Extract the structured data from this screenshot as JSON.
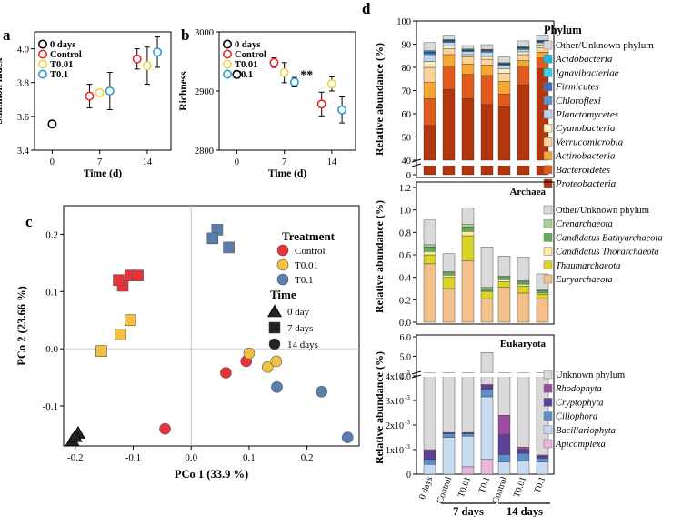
{
  "panel_labels": {
    "a": "a",
    "b": "b",
    "c": "c",
    "d": "d"
  },
  "chart_data": [
    {
      "id": "a",
      "type": "scatter",
      "xlabel": "Time (d)",
      "ylabel": "Shannon index",
      "ylim": [
        3.4,
        4.1
      ],
      "yticks": [
        "3.4",
        "3.6",
        "3.8",
        "4.0"
      ],
      "xticks": [
        "0",
        "7",
        "14"
      ],
      "legend": [
        "0 days",
        "Control",
        "T0.01",
        "T0.1"
      ],
      "series": [
        {
          "name": "0 days",
          "color": "#000000",
          "points": [
            {
              "x": 0,
              "y": 3.555,
              "err": 0.02
            }
          ]
        },
        {
          "name": "Control",
          "color": "#e8262b",
          "points": [
            {
              "x": 5.5,
              "y": 3.72,
              "err": 0.07
            },
            {
              "x": 12.5,
              "y": 3.94,
              "err": 0.06
            }
          ]
        },
        {
          "name": "T0.01",
          "color": "#f0d53a",
          "points": [
            {
              "x": 7,
              "y": 3.74,
              "err": 0.02
            },
            {
              "x": 14,
              "y": 3.9,
              "err": 0.11
            }
          ]
        },
        {
          "name": "T0.1",
          "color": "#2a9ad6",
          "points": [
            {
              "x": 8.5,
              "y": 3.75,
              "err": 0.11
            },
            {
              "x": 15.5,
              "y": 3.98,
              "err": 0.09
            }
          ]
        }
      ]
    },
    {
      "id": "b",
      "type": "scatter",
      "xlabel": "Time (d)",
      "ylabel": "Richness",
      "ylim": [
        2800,
        3000
      ],
      "yticks": [
        "2800",
        "2900",
        "3000"
      ],
      "xticks": [
        "0",
        "7",
        "14"
      ],
      "legend": [
        "0 days",
        "Control",
        "T0.01",
        "T0.1"
      ],
      "annotation": "**",
      "series": [
        {
          "name": "0 days",
          "color": "#000000",
          "points": [
            {
              "x": 0,
              "y": 2928,
              "err": 6
            }
          ]
        },
        {
          "name": "Control",
          "color": "#e8262b",
          "points": [
            {
              "x": 5.5,
              "y": 2948,
              "err": 8
            },
            {
              "x": 12.5,
              "y": 2878,
              "err": 20
            }
          ]
        },
        {
          "name": "T0.01",
          "color": "#f0d53a",
          "points": [
            {
              "x": 7,
              "y": 2931,
              "err": 17
            },
            {
              "x": 14,
              "y": 2912,
              "err": 12
            }
          ]
        },
        {
          "name": "T0.1",
          "color": "#2a9ad6",
          "points": [
            {
              "x": 8.5,
              "y": 2915,
              "err": 8
            },
            {
              "x": 15.5,
              "y": 2868,
              "err": 22
            }
          ]
        }
      ]
    },
    {
      "id": "c",
      "type": "scatter",
      "xlabel": "PCo 1 (33.9 %)",
      "ylabel": "PCo 2 (23.66 %)",
      "xlim": [
        -0.22,
        0.29
      ],
      "ylim": [
        -0.17,
        0.25
      ],
      "xticks": [
        "-0.2",
        "-0.1",
        "0.0",
        "0.1",
        "0.2"
      ],
      "yticks": [
        "-0.1",
        "0.0",
        "0.1",
        "0.2"
      ],
      "legend_treatment_title": "Treatment",
      "legend_treatment": [
        {
          "name": "Control",
          "color": "#e8333a"
        },
        {
          "name": "T0.01",
          "color": "#f2c043"
        },
        {
          "name": "T0.1",
          "color": "#5a7fae"
        }
      ],
      "legend_time_title": "Time",
      "legend_time": [
        {
          "name": "0 day",
          "shape": "triangle"
        },
        {
          "name": "7 days",
          "shape": "square"
        },
        {
          "name": "14 days",
          "shape": "circle"
        }
      ],
      "points": [
        {
          "x": -0.205,
          "y": -0.16,
          "shape": "triangle",
          "color": "#222222"
        },
        {
          "x": -0.195,
          "y": -0.147,
          "shape": "triangle",
          "color": "#222222"
        },
        {
          "x": -0.2,
          "y": -0.153,
          "shape": "triangle",
          "color": "#222222"
        },
        {
          "x": -0.118,
          "y": 0.11,
          "shape": "square",
          "color": "#e8333a"
        },
        {
          "x": -0.105,
          "y": 0.128,
          "shape": "square",
          "color": "#e8333a"
        },
        {
          "x": -0.092,
          "y": 0.128,
          "shape": "square",
          "color": "#e8333a"
        },
        {
          "x": -0.125,
          "y": 0.12,
          "shape": "square",
          "color": "#e8333a"
        },
        {
          "x": -0.155,
          "y": -0.004,
          "shape": "square",
          "color": "#f2c043"
        },
        {
          "x": -0.122,
          "y": 0.025,
          "shape": "square",
          "color": "#f2c043"
        },
        {
          "x": -0.105,
          "y": 0.05,
          "shape": "square",
          "color": "#f2c043"
        },
        {
          "x": 0.045,
          "y": 0.208,
          "shape": "square",
          "color": "#5a7fae"
        },
        {
          "x": 0.037,
          "y": 0.193,
          "shape": "square",
          "color": "#5a7fae"
        },
        {
          "x": 0.065,
          "y": 0.177,
          "shape": "square",
          "color": "#5a7fae"
        },
        {
          "x": -0.045,
          "y": -0.14,
          "shape": "circle",
          "color": "#e8333a"
        },
        {
          "x": 0.06,
          "y": -0.042,
          "shape": "circle",
          "color": "#e8333a"
        },
        {
          "x": 0.095,
          "y": -0.022,
          "shape": "circle",
          "color": "#e8333a"
        },
        {
          "x": 0.1,
          "y": -0.008,
          "shape": "circle",
          "color": "#f2c043"
        },
        {
          "x": 0.132,
          "y": -0.032,
          "shape": "circle",
          "color": "#f2c043"
        },
        {
          "x": 0.147,
          "y": -0.022,
          "shape": "circle",
          "color": "#f2c043"
        },
        {
          "x": 0.148,
          "y": -0.067,
          "shape": "circle",
          "color": "#5a7fae"
        },
        {
          "x": 0.225,
          "y": -0.075,
          "shape": "circle",
          "color": "#5a7fae"
        },
        {
          "x": 0.27,
          "y": -0.155,
          "shape": "circle",
          "color": "#5a7fae"
        }
      ]
    },
    {
      "id": "d1",
      "type": "bar",
      "stacked": true,
      "ylabel": "Relative abundance (%)",
      "ylim": [
        0,
        100
      ],
      "yticks": [
        "100",
        "90",
        "80",
        "70",
        "60",
        "50",
        "40",
        "0"
      ],
      "legend_title": "Phylum",
      "legend": [
        {
          "name": "Other/Unknown phylum",
          "color": "#d9d9d9",
          "italic": false
        },
        {
          "name": "Acidobacteria",
          "color": "#1fb4e6",
          "italic": true
        },
        {
          "name": "Ignavibacteriae",
          "color": "#2fd3ee",
          "italic": true
        },
        {
          "name": "Firmicutes",
          "color": "#3a6fc0",
          "italic": true
        },
        {
          "name": "Chloroflexi",
          "color": "#5d94d4",
          "italic": true
        },
        {
          "name": "Planctomycetes",
          "color": "#bcd6f0",
          "italic": true
        },
        {
          "name": "Cyanobacteria",
          "color": "#fbeec0",
          "italic": true
        },
        {
          "name": "Verrucomicrobia",
          "color": "#fbd29a",
          "italic": true
        },
        {
          "name": "Actinobacteria",
          "color": "#f6a733",
          "italic": true
        },
        {
          "name": "Bacteroidetes",
          "color": "#e25a1c",
          "italic": true
        },
        {
          "name": "Proteobacteria",
          "color": "#b3360c",
          "italic": true
        }
      ],
      "categories": [
        "0 days",
        "Control 7d",
        "T0.01 7d",
        "T0.1 7d",
        "Control 14d",
        "T0.01 14d",
        "T0.1 14d"
      ],
      "series": [
        {
          "name": "Proteobacteria",
          "values": [
            55,
            70.5,
            66.5,
            64,
            63,
            72.5,
            79.5
          ]
        },
        {
          "name": "Bacteroidetes",
          "values": [
            11.5,
            10,
            10.5,
            12.5,
            5.5,
            8,
            4.5
          ]
        },
        {
          "name": "Actinobacteria",
          "values": [
            7,
            5,
            4.5,
            4.5,
            5.5,
            2.5,
            2.5
          ]
        },
        {
          "name": "Verrucomicrobia",
          "values": [
            6.5,
            2.5,
            3,
            2.5,
            3.5,
            2.5,
            2
          ]
        },
        {
          "name": "Cyanobacteria",
          "values": [
            2.5,
            1.2,
            1,
            1.2,
            1.8,
            1.2,
            1.2
          ]
        },
        {
          "name": "Planctomycetes",
          "values": [
            3,
            1.5,
            1.3,
            1.8,
            1.6,
            1,
            0.9
          ]
        },
        {
          "name": "Chloroflexi",
          "values": [
            0.5,
            0.5,
            0.4,
            0.5,
            0.4,
            0.4,
            0.4
          ]
        },
        {
          "name": "Firmicutes",
          "values": [
            0.5,
            0.3,
            0.2,
            0.3,
            0.2,
            0.3,
            0.2
          ]
        },
        {
          "name": "Ignavibacteriae",
          "values": [
            0.2,
            0.2,
            0.2,
            0.2,
            0.2,
            0.2,
            0.2
          ]
        },
        {
          "name": "Acidobacteria",
          "values": [
            0.5,
            0.3,
            0.3,
            0.3,
            0.3,
            0.3,
            0.3
          ]
        },
        {
          "name": "Other/Unknown phylum",
          "values": [
            3.5,
            1.5,
            1.5,
            2,
            2.5,
            2.5,
            2
          ]
        }
      ]
    },
    {
      "id": "d2",
      "type": "bar",
      "stacked": true,
      "title": "Archaea",
      "ylabel": "Relative abundance (%)",
      "ylim": [
        0,
        1.2
      ],
      "yticks": [
        "0.0",
        "0.2",
        "0.4",
        "0.6",
        "0.8",
        "1.0",
        "1.2"
      ],
      "legend": [
        {
          "name": "Other/Unknown phylum",
          "color": "#d9d9d9",
          "italic": false
        },
        {
          "name": "Crenarchaeota",
          "color": "#a8d394",
          "italic": true
        },
        {
          "name": "Candidatus Bathyarchaeota",
          "color": "#5fae57",
          "italic": true
        },
        {
          "name": "Candidatus Thorarchaeota",
          "color": "#fbeaa6",
          "italic": true
        },
        {
          "name": "Thaumarchaeota",
          "color": "#dcd327",
          "italic": true
        },
        {
          "name": "Euryarchaeota",
          "color": "#f4c08a",
          "italic": true
        }
      ],
      "categories": [
        "0 days",
        "Control 7d",
        "T0.01 7d",
        "T0.1 7d",
        "Control 14d",
        "T0.01 14d",
        "T0.1 14d"
      ],
      "series": [
        {
          "name": "Euryarchaeota",
          "values": [
            0.52,
            0.3,
            0.55,
            0.21,
            0.31,
            0.26,
            0.21
          ]
        },
        {
          "name": "Thaumarchaeota",
          "values": [
            0.08,
            0.1,
            0.22,
            0.06,
            0.05,
            0.06,
            0.04
          ]
        },
        {
          "name": "Candidatus Thorarchaeota",
          "values": [
            0.03,
            0.02,
            0.04,
            0.01,
            0.02,
            0.02,
            0.01
          ]
        },
        {
          "name": "Candidatus Bathyarchaeota",
          "values": [
            0.04,
            0.02,
            0.04,
            0.02,
            0.02,
            0.02,
            0.02
          ]
        },
        {
          "name": "Crenarchaeota",
          "values": [
            0.02,
            0.01,
            0.02,
            0.01,
            0.01,
            0.01,
            0.01
          ]
        },
        {
          "name": "Other/Unknown phylum",
          "values": [
            0.22,
            0.16,
            0.15,
            0.36,
            0.18,
            0.21,
            0.14
          ]
        }
      ]
    },
    {
      "id": "d3",
      "type": "bar",
      "stacked": true,
      "title": "Eukaryota",
      "ylabel": "Relative abundance (%)",
      "yticks_low": [
        "0",
        "1x10",
        "2x10",
        "3x10",
        "4x10"
      ],
      "ytick_exponent": "-3",
      "yticks_high": [
        "4.0",
        "5.0",
        "6.0"
      ],
      "legend": [
        {
          "name": "Unknown phylum",
          "color": "#d9d9d9",
          "italic": false
        },
        {
          "name": "Rhodophyta",
          "color": "#9a4d9e",
          "italic": true
        },
        {
          "name": "Cryptophyta",
          "color": "#5c4197",
          "italic": true
        },
        {
          "name": "Ciliophora",
          "color": "#5b8fcd",
          "italic": true
        },
        {
          "name": "Bacillariophyta",
          "color": "#c7dbf1",
          "italic": true
        },
        {
          "name": "Apicomplexa",
          "color": "#e8b6d8",
          "italic": true
        }
      ],
      "categories": [
        "0 days",
        "Control",
        "T0.01",
        "T0.1",
        "Control",
        "T0.01",
        "T0.1"
      ],
      "group_labels": [
        "7 days",
        "14 days"
      ],
      "series_e3": [
        {
          "name": "Apicomplexa",
          "values": [
            0,
            0,
            0.3,
            0.6,
            0,
            0,
            0
          ]
        },
        {
          "name": "Bacillariophyta",
          "values": [
            0.4,
            1.5,
            1.25,
            2.55,
            0.5,
            0.55,
            0.5
          ]
        },
        {
          "name": "Ciliophora",
          "values": [
            0.2,
            0.15,
            0.1,
            0.3,
            0.3,
            0.3,
            0.15
          ]
        },
        {
          "name": "Cryptophyta",
          "values": [
            0.3,
            0.05,
            0.05,
            0.15,
            0.8,
            0.15,
            0.08
          ]
        },
        {
          "name": "Rhodophyta",
          "values": [
            0.1,
            0.0,
            0.0,
            0.05,
            0.8,
            0.1,
            0.05
          ]
        }
      ],
      "totals": [
        0.9,
        2.1,
        2.0,
        5.2,
        3.5,
        3.5,
        3.0
      ]
    }
  ]
}
